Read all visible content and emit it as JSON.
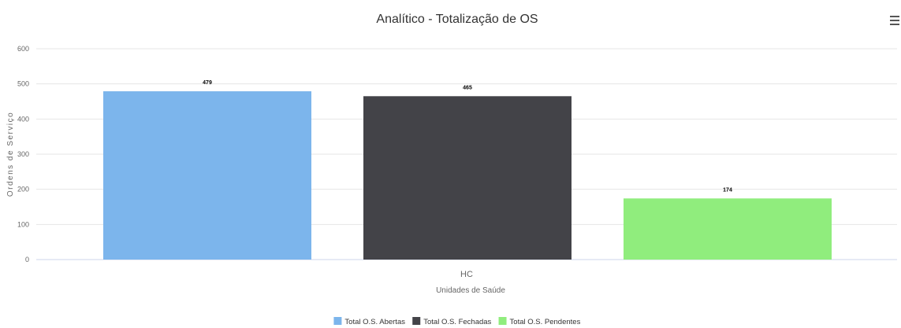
{
  "chart_data": {
    "type": "bar",
    "title": "Analítico - Totalização de OS",
    "xlabel": "Unidades de Saúde",
    "ylabel": "Ordens de Serviço",
    "categories": [
      "HC"
    ],
    "series": [
      {
        "name": "Total O.S. Abertas",
        "values": [
          479
        ],
        "color": "#7cb5ec"
      },
      {
        "name": "Total O.S. Fechadas",
        "values": [
          465
        ],
        "color": "#434348"
      },
      {
        "name": "Total O.S. Pendentes",
        "values": [
          174
        ],
        "color": "#90ed7d"
      }
    ],
    "ylim": [
      0,
      600
    ],
    "yticks": [
      0,
      100,
      200,
      300,
      400,
      500,
      600
    ],
    "grid": true,
    "legend_position": "bottom-center"
  },
  "menu_icon": "hamburger-menu-icon"
}
